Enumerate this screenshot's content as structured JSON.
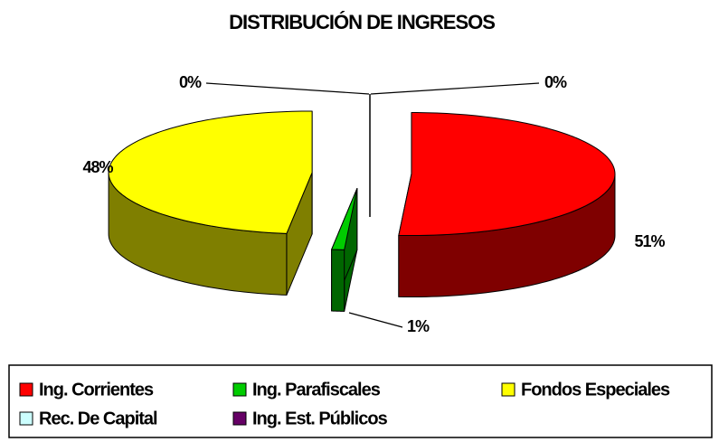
{
  "chart_data": {
    "type": "pie3d",
    "title": "DISTRIBUCIÓN DE INGRESOS",
    "categories": [
      "Ing. Corrientes",
      "Ing. Parafiscales",
      "Fondos Especiales",
      "Rec. De Capital",
      "Ing. Est. Públicos"
    ],
    "values": [
      51,
      1,
      48,
      0,
      0
    ],
    "value_labels": [
      "51%",
      "1%",
      "48%",
      "0%",
      "0%"
    ],
    "colors": [
      "#ff0000",
      "#00cc00",
      "#ffff00",
      "#ccffff",
      "#660066"
    ],
    "legend": "bottom"
  }
}
